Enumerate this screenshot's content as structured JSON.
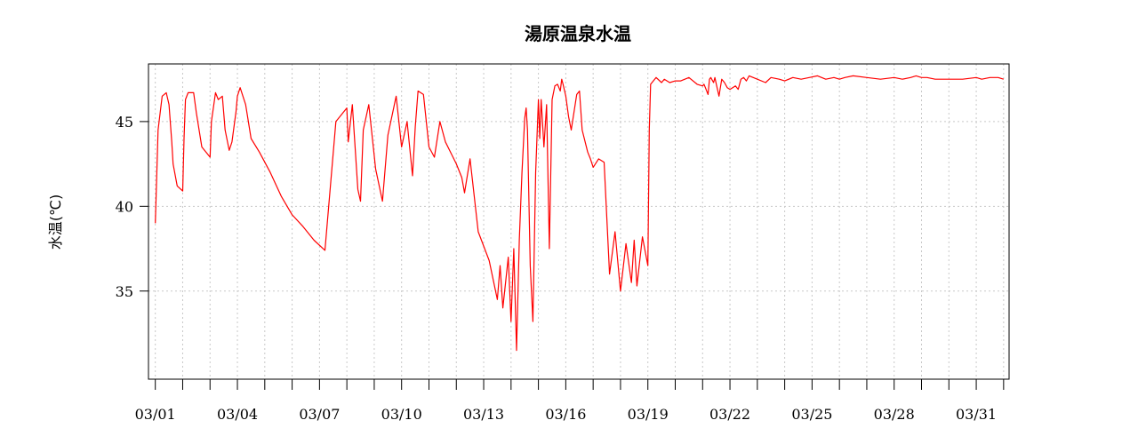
{
  "chart_data": {
    "type": "line",
    "title": "湯原温泉水温",
    "xlabel": "",
    "ylabel": "水温(℃)",
    "xlim": [
      0.75,
      32.2
    ],
    "ylim": [
      29.8,
      48.4
    ],
    "y_ticks": [
      35,
      40,
      45
    ],
    "x_ticks": [
      1,
      2,
      3,
      4,
      5,
      6,
      7,
      8,
      9,
      10,
      11,
      12,
      13,
      14,
      15,
      16,
      17,
      18,
      19,
      20,
      21,
      22,
      23,
      24,
      25,
      26,
      27,
      28,
      29,
      30,
      31,
      32
    ],
    "x_tick_labels": [
      {
        "x": 1,
        "label": "03/01"
      },
      {
        "x": 4,
        "label": "03/04"
      },
      {
        "x": 7,
        "label": "03/07"
      },
      {
        "x": 10,
        "label": "03/10"
      },
      {
        "x": 13,
        "label": "03/13"
      },
      {
        "x": 16,
        "label": "03/16"
      },
      {
        "x": 19,
        "label": "03/19"
      },
      {
        "x": 22,
        "label": "03/22"
      },
      {
        "x": 25,
        "label": "03/25"
      },
      {
        "x": 28,
        "label": "03/28"
      },
      {
        "x": 31,
        "label": "03/31"
      }
    ],
    "grid": true,
    "series": [
      {
        "color": "#ff0000",
        "x": [
          1.0,
          1.1,
          1.25,
          1.4,
          1.5,
          1.6,
          1.65,
          1.8,
          2.0,
          2.05,
          2.1,
          2.2,
          2.4,
          2.5,
          2.7,
          3.0,
          3.05,
          3.2,
          3.3,
          3.45,
          3.55,
          3.7,
          3.8,
          3.95,
          4.0,
          4.1,
          4.3,
          4.5,
          4.8,
          5.2,
          5.6,
          6.0,
          6.4,
          6.8,
          7.2,
          7.6,
          8.0,
          8.05,
          8.2,
          8.3,
          8.4,
          8.5,
          8.6,
          8.8,
          9.0,
          9.05,
          9.3,
          9.5,
          9.8,
          10.0,
          10.2,
          10.4,
          10.5,
          10.6,
          10.8,
          11.0,
          11.2,
          11.4,
          11.6,
          12.0,
          12.2,
          12.3,
          12.5,
          12.8,
          13.2,
          13.5,
          13.6,
          13.7,
          13.9,
          14.0,
          14.1,
          14.2,
          14.3,
          14.4,
          14.5,
          14.55,
          14.6,
          14.7,
          14.8,
          14.9,
          15.0,
          15.05,
          15.1,
          15.2,
          15.3,
          15.4,
          15.5,
          15.6,
          15.7,
          15.8,
          15.85,
          15.9,
          16.0,
          16.1,
          16.2,
          16.4,
          16.5,
          16.6,
          16.8,
          16.9,
          17.0,
          17.2,
          17.4,
          17.6,
          17.8,
          18.0,
          18.2,
          18.4,
          18.5,
          18.6,
          18.8,
          19.0,
          19.05,
          19.1,
          19.3,
          19.5,
          19.6,
          19.8,
          20.0,
          20.2,
          20.5,
          20.8,
          21.0,
          21.05,
          21.1,
          21.2,
          21.25,
          21.3,
          21.4,
          21.45,
          21.5,
          21.6,
          21.7,
          21.8,
          21.9,
          22.0,
          22.1,
          22.2,
          22.3,
          22.4,
          22.5,
          22.6,
          22.7,
          23.0,
          23.3,
          23.5,
          23.8,
          24.0,
          24.3,
          24.6,
          24.9,
          25.2,
          25.5,
          25.8,
          26.0,
          26.2,
          26.5,
          27.0,
          27.5,
          28.0,
          28.3,
          28.6,
          28.8,
          29.0,
          29.2,
          29.5,
          30.0,
          30.5,
          31.0,
          31.2,
          31.5,
          31.8,
          32.0
        ],
        "y": [
          39.0,
          44.5,
          46.5,
          46.7,
          46.0,
          43.8,
          42.5,
          41.2,
          40.9,
          44.0,
          46.3,
          46.7,
          46.7,
          45.5,
          43.5,
          42.9,
          45.0,
          46.7,
          46.3,
          46.5,
          44.5,
          43.3,
          43.8,
          45.6,
          46.5,
          47.0,
          46.0,
          44.0,
          43.2,
          42.0,
          40.6,
          39.5,
          38.8,
          38.0,
          37.4,
          45.0,
          45.8,
          43.8,
          46.0,
          43.5,
          41.0,
          40.3,
          44.5,
          46.0,
          43.0,
          42.2,
          40.3,
          44.2,
          46.5,
          43.5,
          45.0,
          41.8,
          44.7,
          46.8,
          46.6,
          43.5,
          42.9,
          45.0,
          43.8,
          42.5,
          41.7,
          40.8,
          42.8,
          38.5,
          36.8,
          34.5,
          36.5,
          34.0,
          37.0,
          33.2,
          37.5,
          31.5,
          38.0,
          42.0,
          45.2,
          45.8,
          44.5,
          36.5,
          33.2,
          42.0,
          46.3,
          44.0,
          46.3,
          43.5,
          46.0,
          37.5,
          46.3,
          47.1,
          47.2,
          46.8,
          47.5,
          47.2,
          46.5,
          45.3,
          44.5,
          46.6,
          46.8,
          44.5,
          43.2,
          42.8,
          42.3,
          42.8,
          42.6,
          36.0,
          38.5,
          35.0,
          37.8,
          35.5,
          38.0,
          35.3,
          38.2,
          36.5,
          44.5,
          47.2,
          47.6,
          47.3,
          47.5,
          47.3,
          47.4,
          47.4,
          47.6,
          47.2,
          47.1,
          47.2,
          47.0,
          46.6,
          47.5,
          47.6,
          47.3,
          47.6,
          47.2,
          46.5,
          47.5,
          47.3,
          47.0,
          46.9,
          47.0,
          47.1,
          46.9,
          47.5,
          47.6,
          47.4,
          47.7,
          47.5,
          47.3,
          47.6,
          47.5,
          47.4,
          47.6,
          47.5,
          47.6,
          47.7,
          47.5,
          47.6,
          47.5,
          47.6,
          47.7,
          47.6,
          47.5,
          47.6,
          47.5,
          47.6,
          47.7,
          47.6,
          47.6,
          47.5,
          47.5,
          47.5,
          47.6,
          47.5,
          47.6,
          47.6,
          47.5
        ]
      }
    ]
  }
}
